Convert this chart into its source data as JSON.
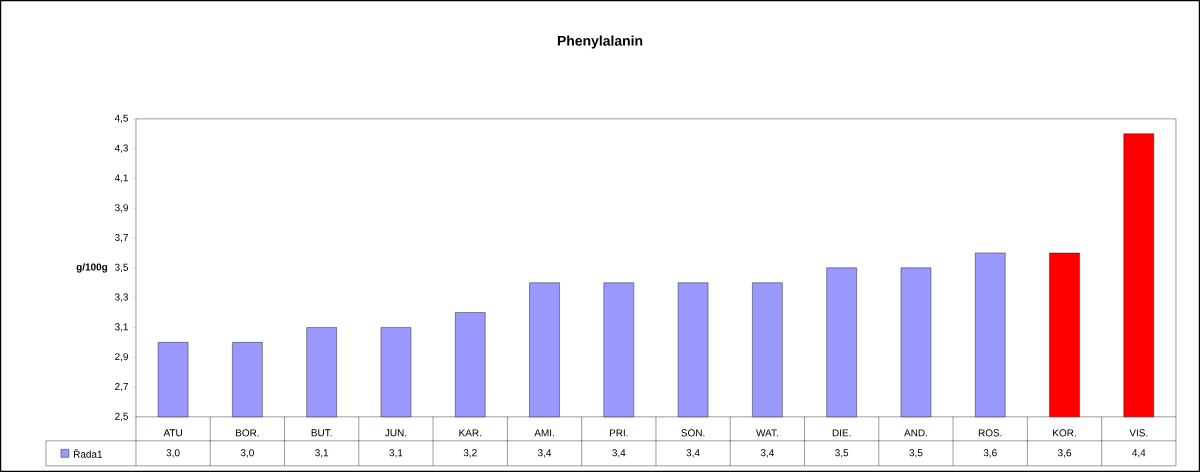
{
  "chart_data": {
    "type": "bar",
    "title": "Phenylalanin",
    "ylabel": "g/100g",
    "categories": [
      "ATU",
      "BOR.",
      "BUT.",
      "JUN.",
      "KAR.",
      "AMI.",
      "PRI.",
      "SON.",
      "WAT.",
      "DIE.",
      "AND.",
      "ROS.",
      "KOR.",
      "VIS."
    ],
    "series": [
      {
        "name": "Řada1",
        "color": "#9999ff",
        "colors": [
          "#9999ff",
          "#9999ff",
          "#9999ff",
          "#9999ff",
          "#9999ff",
          "#9999ff",
          "#9999ff",
          "#9999ff",
          "#9999ff",
          "#9999ff",
          "#9999ff",
          "#9999ff",
          "#ff0000",
          "#ff0000"
        ],
        "values": [
          3.0,
          3.0,
          3.1,
          3.1,
          3.2,
          3.4,
          3.4,
          3.4,
          3.4,
          3.5,
          3.5,
          3.6,
          3.6,
          4.4
        ],
        "value_labels": [
          "3,0",
          "3,0",
          "3,1",
          "3,1",
          "3,2",
          "3,4",
          "3,4",
          "3,4",
          "3,4",
          "3,5",
          "3,5",
          "3,6",
          "3,6",
          "4,4"
        ]
      }
    ],
    "ylim": [
      2.5,
      4.5
    ],
    "yticks": [
      {
        "value": 2.5,
        "label": "2,5"
      },
      {
        "value": 2.7,
        "label": "2,7"
      },
      {
        "value": 2.9,
        "label": "2,9"
      },
      {
        "value": 3.1,
        "label": "3,1"
      },
      {
        "value": 3.3,
        "label": "3,3"
      },
      {
        "value": 3.5,
        "label": "3,5"
      },
      {
        "value": 3.7,
        "label": "3,7"
      },
      {
        "value": 3.9,
        "label": "3,9"
      },
      {
        "value": 4.1,
        "label": "4,1"
      },
      {
        "value": 4.3,
        "label": "4,3"
      },
      {
        "value": 4.5,
        "label": "4,5"
      }
    ],
    "grid": false,
    "legend": "bottom left"
  }
}
